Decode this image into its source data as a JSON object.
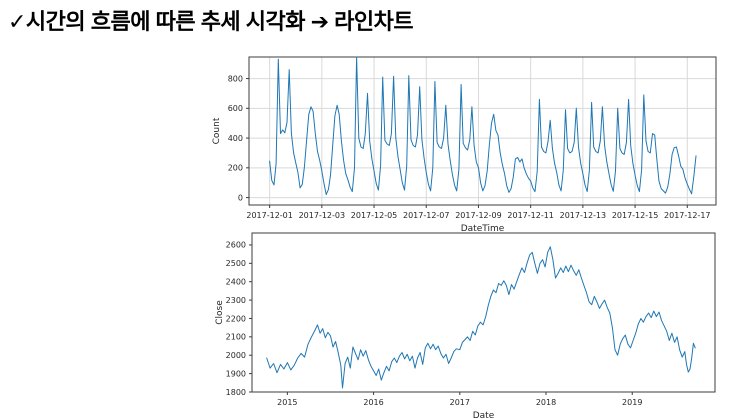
{
  "page": {
    "background": "#ffffff"
  },
  "title": {
    "text": "✓시간의 흐름에 따른 추세 시각화 ➔ 라인차트"
  },
  "chart_data": [
    {
      "type": "line",
      "name": "hourly-count-line-chart",
      "title": "",
      "xlabel": "DateTime",
      "ylabel": "Count",
      "legend": "none",
      "grid": true,
      "line_color": "#1f77b4",
      "grid_color": "#d9d9d9",
      "x_tick_labels": [
        "2017-12-01",
        "2017-12-03",
        "2017-12-05",
        "2017-12-07",
        "2017-12-09",
        "2017-12-11",
        "2017-12-13",
        "2017-12-15",
        "2017-12-17"
      ],
      "x_tick_days": [
        0,
        2,
        4,
        6,
        8,
        10,
        12,
        14,
        16
      ],
      "y_ticks": [
        0,
        200,
        400,
        600,
        800
      ],
      "xlim_days": [
        -0.79,
        17.1
      ],
      "ylim": [
        -50,
        945
      ],
      "x_start": "2017-12-01 00:00",
      "x_step_hours": 2,
      "values": [
        245,
        115,
        85,
        230,
        930,
        430,
        455,
        435,
        505,
        860,
        430,
        300,
        235,
        170,
        65,
        90,
        205,
        385,
        560,
        610,
        580,
        430,
        310,
        250,
        180,
        95,
        20,
        55,
        150,
        350,
        550,
        620,
        560,
        380,
        250,
        160,
        120,
        70,
        40,
        200,
        945,
        400,
        340,
        330,
        430,
        700,
        380,
        260,
        180,
        95,
        50,
        215,
        810,
        385,
        360,
        350,
        430,
        815,
        400,
        275,
        190,
        100,
        50,
        210,
        820,
        390,
        350,
        340,
        420,
        745,
        390,
        265,
        170,
        90,
        45,
        200,
        780,
        370,
        340,
        330,
        400,
        620,
        360,
        250,
        160,
        85,
        45,
        190,
        760,
        365,
        335,
        320,
        390,
        610,
        350,
        240,
        200,
        100,
        45,
        80,
        180,
        350,
        500,
        560,
        450,
        420,
        300,
        220,
        160,
        80,
        35,
        60,
        140,
        260,
        270,
        240,
        260,
        200,
        160,
        130,
        110,
        65,
        40,
        175,
        660,
        340,
        310,
        300,
        380,
        520,
        330,
        230,
        165,
        85,
        45,
        185,
        590,
        330,
        300,
        310,
        370,
        600,
        340,
        230,
        160,
        85,
        40,
        185,
        640,
        340,
        310,
        300,
        380,
        610,
        350,
        240,
        160,
        88,
        42,
        180,
        600,
        330,
        300,
        290,
        370,
        660,
        350,
        230,
        150,
        80,
        40,
        185,
        690,
        380,
        310,
        300,
        430,
        420,
        260,
        110,
        60,
        45,
        30,
        70,
        160,
        290,
        335,
        340,
        280,
        210,
        190,
        130,
        90,
        55,
        25,
        140,
        280
      ]
    },
    {
      "type": "line",
      "name": "daily-close-line-chart",
      "title": "",
      "xlabel": "Date",
      "ylabel": "Close",
      "legend": "none",
      "grid": false,
      "line_color": "#1f77b4",
      "x_ticks": [
        2015,
        2016,
        2017,
        2018,
        2019
      ],
      "y_ticks": [
        1800,
        1900,
        2000,
        2100,
        2200,
        2300,
        2400,
        2500,
        2600
      ],
      "xlim": [
        2014.59,
        2019.96
      ],
      "ylim": [
        1800,
        2665
      ],
      "points": [
        [
          2014.76,
          1985
        ],
        [
          2014.8,
          1930
        ],
        [
          2014.84,
          1955
        ],
        [
          2014.88,
          1905
        ],
        [
          2014.92,
          1950
        ],
        [
          2014.96,
          1925
        ],
        [
          2015.0,
          1960
        ],
        [
          2015.04,
          1920
        ],
        [
          2015.08,
          1945
        ],
        [
          2015.12,
          1985
        ],
        [
          2015.16,
          2010
        ],
        [
          2015.2,
          1990
        ],
        [
          2015.24,
          2060
        ],
        [
          2015.28,
          2100
        ],
        [
          2015.32,
          2135
        ],
        [
          2015.35,
          2165
        ],
        [
          2015.38,
          2120
        ],
        [
          2015.41,
          2145
        ],
        [
          2015.44,
          2095
        ],
        [
          2015.47,
          2125
        ],
        [
          2015.5,
          2105
        ],
        [
          2015.53,
          2045
        ],
        [
          2015.56,
          2075
        ],
        [
          2015.59,
          2015
        ],
        [
          2015.62,
          1945
        ],
        [
          2015.64,
          1822
        ],
        [
          2015.67,
          1955
        ],
        [
          2015.7,
          1990
        ],
        [
          2015.73,
          1930
        ],
        [
          2015.76,
          2045
        ],
        [
          2015.79,
          2010
        ],
        [
          2015.82,
          1975
        ],
        [
          2015.85,
          2030
        ],
        [
          2015.88,
          1995
        ],
        [
          2015.91,
          2025
        ],
        [
          2015.94,
          1975
        ],
        [
          2015.97,
          1940
        ],
        [
          2016.0,
          1915
        ],
        [
          2016.03,
          1890
        ],
        [
          2016.06,
          1925
        ],
        [
          2016.09,
          1865
        ],
        [
          2016.12,
          1905
        ],
        [
          2016.15,
          1940
        ],
        [
          2016.18,
          1915
        ],
        [
          2016.21,
          1965
        ],
        [
          2016.24,
          1985
        ],
        [
          2016.27,
          1960
        ],
        [
          2016.3,
          1995
        ],
        [
          2016.33,
          2015
        ],
        [
          2016.36,
          1980
        ],
        [
          2016.39,
          2005
        ],
        [
          2016.42,
          1970
        ],
        [
          2016.45,
          1995
        ],
        [
          2016.48,
          1930
        ],
        [
          2016.51,
          1985
        ],
        [
          2016.54,
          2015
        ],
        [
          2016.57,
          1950
        ],
        [
          2016.6,
          2040
        ],
        [
          2016.63,
          2065
        ],
        [
          2016.66,
          2035
        ],
        [
          2016.69,
          2060
        ],
        [
          2016.72,
          2030
        ],
        [
          2016.75,
          2050
        ],
        [
          2016.78,
          2010
        ],
        [
          2016.81,
          1985
        ],
        [
          2016.84,
          2005
        ],
        [
          2016.87,
          1955
        ],
        [
          2016.9,
          1985
        ],
        [
          2016.93,
          2020
        ],
        [
          2016.96,
          2035
        ],
        [
          2017.0,
          2030
        ],
        [
          2017.03,
          2070
        ],
        [
          2017.06,
          2085
        ],
        [
          2017.09,
          2100
        ],
        [
          2017.12,
          2080
        ],
        [
          2017.15,
          2130
        ],
        [
          2017.18,
          2110
        ],
        [
          2017.21,
          2160
        ],
        [
          2017.24,
          2180
        ],
        [
          2017.27,
          2165
        ],
        [
          2017.3,
          2210
        ],
        [
          2017.33,
          2270
        ],
        [
          2017.36,
          2320
        ],
        [
          2017.39,
          2355
        ],
        [
          2017.42,
          2340
        ],
        [
          2017.45,
          2390
        ],
        [
          2017.48,
          2380
        ],
        [
          2017.51,
          2405
        ],
        [
          2017.54,
          2380
        ],
        [
          2017.57,
          2330
        ],
        [
          2017.6,
          2385
        ],
        [
          2017.63,
          2360
        ],
        [
          2017.66,
          2400
        ],
        [
          2017.69,
          2440
        ],
        [
          2017.72,
          2475
        ],
        [
          2017.75,
          2450
        ],
        [
          2017.78,
          2500
        ],
        [
          2017.81,
          2545
        ],
        [
          2017.84,
          2560
        ],
        [
          2017.87,
          2500
        ],
        [
          2017.9,
          2445
        ],
        [
          2017.93,
          2500
        ],
        [
          2017.96,
          2520
        ],
        [
          2017.99,
          2480
        ],
        [
          2018.02,
          2560
        ],
        [
          2018.05,
          2590
        ],
        [
          2018.08,
          2520
        ],
        [
          2018.11,
          2420
        ],
        [
          2018.14,
          2445
        ],
        [
          2018.17,
          2475
        ],
        [
          2018.2,
          2450
        ],
        [
          2018.23,
          2485
        ],
        [
          2018.26,
          2455
        ],
        [
          2018.29,
          2490
        ],
        [
          2018.32,
          2460
        ],
        [
          2018.35,
          2435
        ],
        [
          2018.38,
          2465
        ],
        [
          2018.41,
          2420
        ],
        [
          2018.44,
          2380
        ],
        [
          2018.47,
          2340
        ],
        [
          2018.5,
          2290
        ],
        [
          2018.53,
          2275
        ],
        [
          2018.56,
          2320
        ],
        [
          2018.59,
          2290
        ],
        [
          2018.62,
          2255
        ],
        [
          2018.65,
          2280
        ],
        [
          2018.68,
          2300
        ],
        [
          2018.71,
          2260
        ],
        [
          2018.74,
          2230
        ],
        [
          2018.77,
          2150
        ],
        [
          2018.8,
          2030
        ],
        [
          2018.83,
          2000
        ],
        [
          2018.86,
          2060
        ],
        [
          2018.89,
          2090
        ],
        [
          2018.92,
          2110
        ],
        [
          2018.95,
          2060
        ],
        [
          2018.98,
          2040
        ],
        [
          2019.01,
          2080
        ],
        [
          2019.04,
          2120
        ],
        [
          2019.07,
          2170
        ],
        [
          2019.1,
          2200
        ],
        [
          2019.13,
          2180
        ],
        [
          2019.16,
          2210
        ],
        [
          2019.19,
          2230
        ],
        [
          2019.22,
          2205
        ],
        [
          2019.25,
          2240
        ],
        [
          2019.28,
          2210
        ],
        [
          2019.31,
          2235
        ],
        [
          2019.34,
          2190
        ],
        [
          2019.37,
          2160
        ],
        [
          2019.4,
          2130
        ],
        [
          2019.43,
          2080
        ],
        [
          2019.46,
          2120
        ],
        [
          2019.49,
          2070
        ],
        [
          2019.52,
          2100
        ],
        [
          2019.55,
          2030
        ],
        [
          2019.58,
          1990
        ],
        [
          2019.61,
          2020
        ],
        [
          2019.63,
          1950
        ],
        [
          2019.65,
          1908
        ],
        [
          2019.67,
          1925
        ],
        [
          2019.69,
          1985
        ],
        [
          2019.71,
          2065
        ],
        [
          2019.73,
          2040
        ]
      ]
    }
  ]
}
